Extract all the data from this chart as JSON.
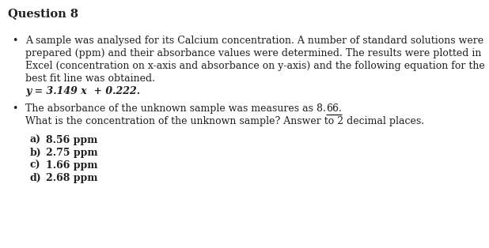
{
  "title": "Question 8",
  "bullet1_lines": [
    "A sample was analysed for its Calcium concentration. A number of standard solutions were",
    "prepared (ppm) and their absorbance values were determined. The results were plotted in",
    "Excel (concentration on x-axis and absorbance on y-axis) and the following equation for the",
    "best fit line was obtained."
  ],
  "equation": "y = 3.149 x  + 0.222.",
  "bullet2_pre": "The absorbance of the unknown sample was measures as 8.",
  "bullet2_underline": "66.",
  "bullet2_line2": "What is the concentration of the unknown sample? Answer to 2 decimal places.",
  "options": [
    [
      "a)",
      "8.56 ppm"
    ],
    [
      "b)",
      "2.75 ppm"
    ],
    [
      "c)",
      "1.66 ppm"
    ],
    [
      "d)",
      "2.68 ppm"
    ]
  ],
  "bg_color": "#ffffff",
  "text_color": "#231f20",
  "font_size_title": 10.5,
  "font_size_body": 9.0
}
